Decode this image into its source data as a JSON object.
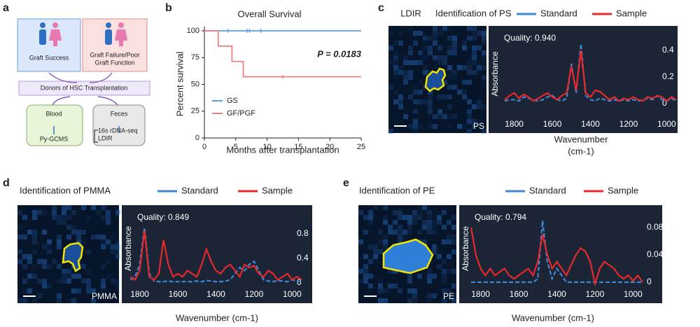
{
  "panels": [
    "a",
    "b",
    "c",
    "d",
    "e"
  ],
  "diagram": {
    "nodes": [
      {
        "lines": [
          "Graft Success"
        ]
      },
      {
        "lines": [
          "Graft Failure/Poor",
          "Graft Function"
        ]
      },
      {
        "lines": [
          "Donors of HSC Transplantation"
        ]
      },
      {
        "lines": [
          "Blood"
        ]
      },
      {
        "lines": [
          "Py-GCMS"
        ]
      },
      {
        "lines": [
          "Feces"
        ]
      },
      {
        "lines": [
          "16s rDNA-seq",
          "LDIR"
        ]
      }
    ]
  },
  "chart_data": [
    {
      "type": "step",
      "title": "Overall Survival",
      "xlabel": "Months after transplantation",
      "ylabel": "Percent survival",
      "xlim": [
        0,
        25
      ],
      "ylim": [
        0,
        100
      ],
      "xticks": [
        0,
        5,
        10,
        15,
        20,
        25
      ],
      "yticks": [
        0,
        25,
        50,
        75,
        100
      ],
      "annotation": "P = 0.0183",
      "series": [
        {
          "name": "GS",
          "color": "#5b9bf0",
          "x": [
            0,
            25
          ],
          "values": [
            100,
            100
          ],
          "censor_x": [
            3.8,
            6.8,
            7.2,
            9
          ],
          "censor_values": [
            100,
            100,
            100,
            100
          ]
        },
        {
          "name": "GF/PGF",
          "color": "#f08080",
          "x": [
            0,
            2.2,
            4.4,
            6.2,
            25
          ],
          "values": [
            100,
            85.7,
            71.4,
            57.1,
            57.1
          ],
          "censor_x": [
            12.5
          ],
          "censor_values": [
            57.1
          ]
        }
      ]
    },
    {
      "type": "spectrum",
      "label": "LDIR",
      "title": "Identification of PS",
      "image_label": "PS",
      "annotation": "Quality:  0.940",
      "xlabel": [
        "Wavenumber",
        "(cm-1)"
      ],
      "ylabel": "Absorbance",
      "xlim": [
        1850,
        950
      ],
      "ylim": [
        -0.1,
        0.5
      ],
      "xticks": [
        1800,
        1600,
        1400,
        1200,
        1000
      ],
      "yticks": [
        0,
        0.2,
        0.4
      ],
      "x": [
        1850,
        1825,
        1800,
        1775,
        1750,
        1725,
        1700,
        1675,
        1650,
        1625,
        1600,
        1575,
        1550,
        1525,
        1500,
        1475,
        1450,
        1425,
        1400,
        1375,
        1350,
        1325,
        1300,
        1275,
        1250,
        1225,
        1200,
        1175,
        1150,
        1125,
        1100,
        1075,
        1050,
        1025,
        1000,
        975,
        950
      ],
      "series": [
        {
          "name": "Standard",
          "color": "#3d88d0",
          "values": [
            0.02,
            0.03,
            0.03,
            0.02,
            0.05,
            0.04,
            0.03,
            0.02,
            0.03,
            0.05,
            0.06,
            0.03,
            0.02,
            0.04,
            0.3,
            0.08,
            0.45,
            0.06,
            0.03,
            0.02,
            0.04,
            0.03,
            0.02,
            0.03,
            0.02,
            0.03,
            0.02,
            0.03,
            0.02,
            0.03,
            0.04,
            0.03,
            0.06,
            0.03,
            0.02,
            0.04,
            0.02
          ]
        },
        {
          "name": "Sample",
          "color": "#e8282b",
          "values": [
            0.03,
            0.06,
            0.08,
            0.04,
            0.07,
            0.05,
            0.02,
            0.04,
            0.06,
            0.08,
            0.05,
            0.03,
            0.06,
            0.08,
            0.28,
            0.1,
            0.4,
            0.08,
            0.05,
            0.1,
            0.09,
            0.06,
            0.03,
            0.05,
            0.02,
            0.04,
            0.03,
            0.05,
            0.03,
            0.02,
            0.05,
            0.04,
            0.06,
            0.05,
            0.02,
            0.05,
            0.03
          ]
        }
      ]
    },
    {
      "type": "spectrum",
      "title": "Identification of PMMA",
      "image_label": "PMMA",
      "annotation": "Quality:  0.849",
      "xlabel": [
        "Wavenumber (cm-1)"
      ],
      "ylabel": "Absorbance",
      "xlim": [
        1850,
        950
      ],
      "ylim": [
        -0.1,
        1.0
      ],
      "xticks": [
        1800,
        1600,
        1400,
        1200,
        1000
      ],
      "yticks": [
        0,
        0.4,
        0.8
      ],
      "x": [
        1850,
        1825,
        1800,
        1775,
        1750,
        1725,
        1700,
        1675,
        1650,
        1625,
        1600,
        1575,
        1550,
        1525,
        1500,
        1475,
        1450,
        1425,
        1400,
        1375,
        1350,
        1325,
        1300,
        1275,
        1250,
        1225,
        1200,
        1175,
        1150,
        1125,
        1100,
        1075,
        1050,
        1025,
        1000,
        975,
        950
      ],
      "series": [
        {
          "name": "Standard",
          "color": "#3d88d0",
          "values": [
            0.05,
            0.1,
            0.3,
            0.9,
            0.15,
            0.03,
            0.02,
            0.02,
            0.03,
            0.02,
            0.02,
            0.02,
            0.02,
            0.02,
            0.03,
            0.02,
            0.04,
            0.03,
            0.02,
            0.02,
            0.03,
            0.05,
            0.15,
            0.25,
            0.2,
            0.3,
            0.35,
            0.2,
            0.05,
            0.03,
            0.02,
            0.04,
            0.03,
            0.02,
            0.05,
            0.03,
            0.02
          ]
        },
        {
          "name": "Sample",
          "color": "#e8282b",
          "values": [
            0.1,
            0.05,
            0.2,
            0.85,
            0.1,
            0.05,
            0.15,
            0.7,
            0.3,
            0.1,
            0.15,
            0.1,
            0.2,
            0.15,
            0.1,
            0.3,
            0.55,
            0.35,
            0.2,
            0.15,
            0.25,
            0.3,
            0.2,
            0.1,
            0.3,
            0.25,
            0.28,
            0.15,
            0.1,
            0.2,
            0.15,
            0.05,
            0.1,
            0.15,
            0.05,
            0.1,
            0.05
          ]
        }
      ]
    },
    {
      "type": "spectrum",
      "title": "Identification of PE",
      "image_label": "PE",
      "annotation": "Quality:  0.794",
      "xlabel": [
        "Wavenumber (cm-1)"
      ],
      "ylabel": "Absorbance",
      "xlim": [
        1850,
        950
      ],
      "ylim": [
        -0.01,
        0.1
      ],
      "xticks": [
        1800,
        1600,
        1400,
        1200,
        1000
      ],
      "yticks": [
        0,
        0.04,
        0.08
      ],
      "x": [
        1850,
        1825,
        1800,
        1775,
        1750,
        1725,
        1700,
        1675,
        1650,
        1625,
        1600,
        1575,
        1550,
        1525,
        1500,
        1475,
        1450,
        1425,
        1400,
        1375,
        1350,
        1325,
        1300,
        1275,
        1250,
        1225,
        1200,
        1175,
        1150,
        1125,
        1100,
        1075,
        1050,
        1025,
        1000,
        975,
        950
      ],
      "series": [
        {
          "name": "Standard",
          "color": "#3d88d0",
          "values": [
            0,
            0,
            0,
            0,
            0,
            0,
            0,
            0,
            0,
            0,
            0,
            0,
            0,
            0,
            0.005,
            0.09,
            0.03,
            0.005,
            0.02,
            0.01,
            0,
            0,
            0,
            0,
            0,
            0,
            0,
            0,
            0,
            0,
            0,
            0,
            0,
            0,
            0,
            0,
            0
          ]
        },
        {
          "name": "Sample",
          "color": "#e8282b",
          "values": [
            0.08,
            0.04,
            0.02,
            0.01,
            0.02,
            0.01,
            0.015,
            0.02,
            0.01,
            0.005,
            0.01,
            0.015,
            0.02,
            0.01,
            0.03,
            0.07,
            0.04,
            0.02,
            0.03,
            0.02,
            0.01,
            0.025,
            0.04,
            0.05,
            0.045,
            0.03,
            -0.002,
            0.02,
            0.03,
            0.025,
            0.02,
            0.01,
            0.005,
            0.01,
            0.002,
            0.01,
            0
          ]
        }
      ]
    }
  ]
}
